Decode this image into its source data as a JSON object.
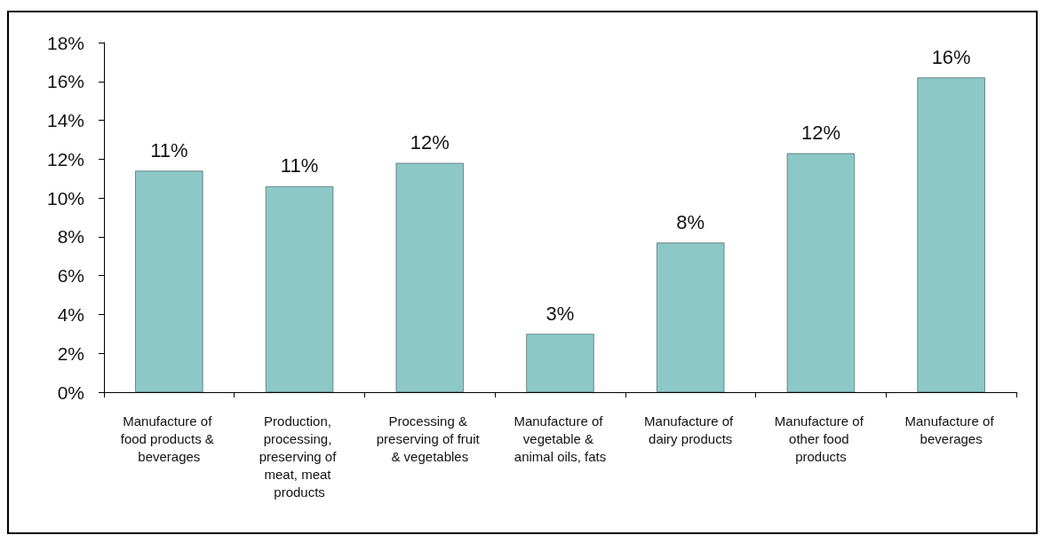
{
  "chart_data": {
    "type": "bar",
    "categories": [
      "Manufacture of food products & beverages",
      "Production, processing, preserving of meat, meat products",
      "Processing & preserving of fruit & vegetables",
      "Manufacture of vegetable & animal oils, fats",
      "Manufacture of dairy products",
      "Manufacture of other food products",
      "Manufacture of beverages"
    ],
    "values": [
      11.4,
      10.6,
      11.8,
      3.0,
      7.7,
      12.3,
      16.2
    ],
    "value_labels": [
      "11%",
      "11%",
      "12%",
      "3%",
      "8%",
      "12%",
      "16%"
    ],
    "color": "#8dc8c8",
    "ylim": [
      0,
      18
    ],
    "yticks": [
      {
        "value": 0,
        "label": "0%"
      },
      {
        "value": 2,
        "label": "2%"
      },
      {
        "value": 4,
        "label": "4%"
      },
      {
        "value": 6,
        "label": "6%"
      },
      {
        "value": 8,
        "label": "8%"
      },
      {
        "value": 10,
        "label": "10%"
      },
      {
        "value": 12,
        "label": "12%"
      },
      {
        "value": 14,
        "label": "14%"
      },
      {
        "value": 16,
        "label": "16%"
      },
      {
        "value": 18,
        "label": "18%"
      }
    ],
    "grid": false
  }
}
